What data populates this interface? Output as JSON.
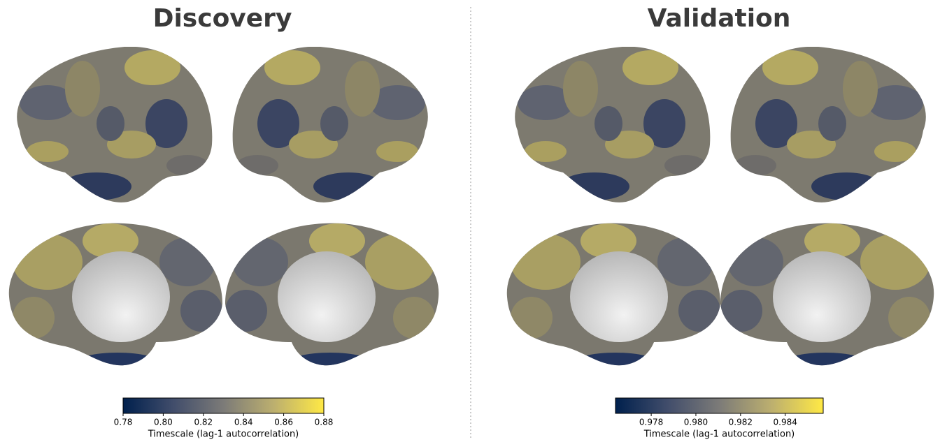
{
  "panels": [
    {
      "title": "Discovery",
      "colorbar": {
        "label": "Timescale (lag-1 autocorrelation)",
        "lim": [
          0.78,
          0.88
        ],
        "ticks": [
          0.78,
          {
            "value": 0.8,
            "label": "0.80"
          },
          0.82,
          0.84,
          0.86,
          0.88
        ]
      }
    },
    {
      "title": "Validation",
      "colorbar": {
        "label": "Timescale (lag-1 autocorrelation)",
        "lim": [
          0.9764,
          0.9857
        ],
        "ticks": [
          0.978,
          {
            "value": 0.98,
            "label": "0.980"
          },
          0.982,
          0.984
        ]
      }
    }
  ]
}
